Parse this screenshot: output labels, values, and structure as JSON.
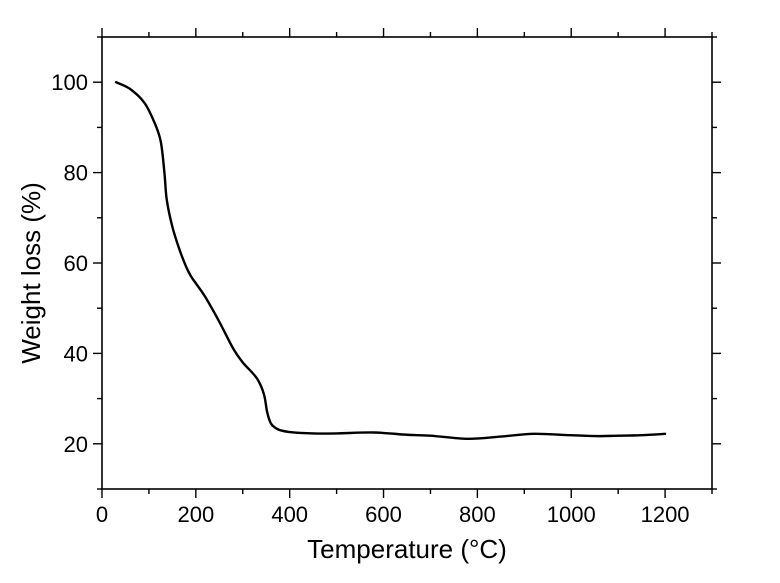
{
  "chart_data": {
    "type": "line",
    "title": "",
    "xlabel": "Temperature (°C)",
    "ylabel": "Weight loss (%)",
    "xlim": [
      0,
      1300
    ],
    "ylim": [
      10,
      110
    ],
    "x_ticks": [
      0,
      200,
      400,
      600,
      800,
      1000,
      1200
    ],
    "y_ticks": [
      20,
      40,
      60,
      80,
      100
    ],
    "x_tick_labels": [
      "0",
      "200",
      "400",
      "600",
      "800",
      "1000",
      "1200"
    ],
    "y_tick_labels": [
      "20",
      "40",
      "60",
      "80",
      "100"
    ],
    "x_minor_step": 100,
    "y_minor_step": 10,
    "grid": false,
    "legend": "none",
    "series": [
      {
        "color": "#000000",
        "x": [
          30,
          60,
          90,
          110,
          125,
          133,
          138,
          150,
          165,
          180,
          190,
          200,
          220,
          250,
          280,
          300,
          330,
          345,
          352,
          360,
          370,
          380,
          400,
          450,
          500,
          580,
          650,
          700,
          780,
          850,
          920,
          1000,
          1060,
          1100,
          1150,
          1200
        ],
        "y": [
          100,
          98.5,
          95.5,
          91.5,
          87,
          80,
          74,
          68,
          63,
          59,
          57,
          55.5,
          52.5,
          47,
          41,
          38,
          34.5,
          31,
          27,
          24.5,
          23.5,
          23,
          22.6,
          22.3,
          22.3,
          22.5,
          22,
          21.8,
          21.1,
          21.6,
          22.2,
          21.9,
          21.7,
          21.8,
          21.9,
          22.2
        ]
      }
    ]
  }
}
